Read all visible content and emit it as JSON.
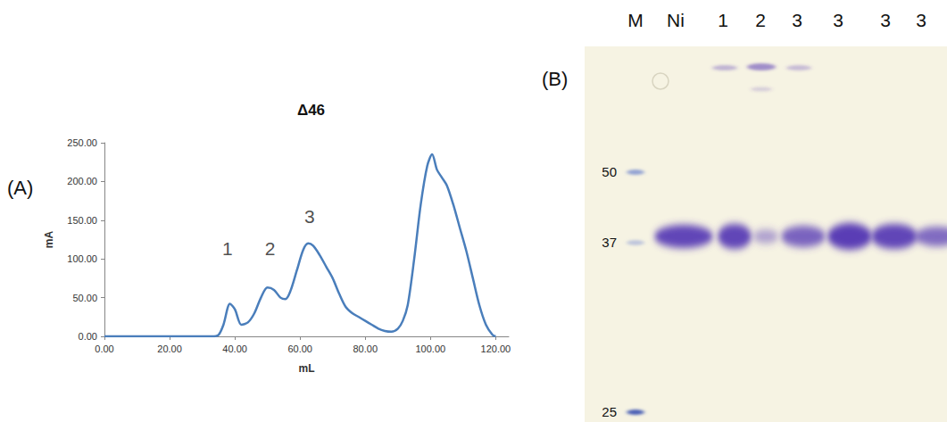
{
  "panel_labels": {
    "A": "(A)",
    "B": "(B)"
  },
  "chart_data": {
    "type": "line",
    "title": "Δ46",
    "xlabel": "mL",
    "ylabel": "mA",
    "color": "#4a7ebb",
    "grid": false,
    "x": [
      0,
      10,
      20,
      30,
      33,
      35,
      36.5,
      38.5,
      40,
      42,
      44,
      46,
      48,
      50,
      52,
      54,
      55.5,
      57,
      59,
      61,
      62.5,
      64,
      66,
      68,
      70,
      72,
      74,
      76,
      78,
      80,
      82,
      84,
      86,
      88,
      90,
      91.5,
      93,
      95,
      97,
      99,
      100.5,
      102,
      103.5,
      105,
      107,
      109,
      111,
      113,
      115,
      117,
      119,
      120
    ],
    "values": [
      0,
      0,
      0,
      0,
      0,
      2,
      15,
      42,
      35,
      15,
      18,
      30,
      50,
      63,
      60,
      50,
      48,
      58,
      85,
      112,
      120,
      117,
      105,
      90,
      75,
      55,
      38,
      30,
      25,
      20,
      15,
      10,
      7,
      6,
      10,
      20,
      40,
      100,
      170,
      220,
      235,
      215,
      205,
      195,
      170,
      140,
      110,
      75,
      40,
      15,
      2,
      0
    ],
    "xlim": [
      0,
      124
    ],
    "xticks": [
      {
        "value": 0,
        "label": "0.00"
      },
      {
        "value": 20,
        "label": "20.00"
      },
      {
        "value": 40,
        "label": "40.00"
      },
      {
        "value": 60,
        "label": "60.00"
      },
      {
        "value": 80,
        "label": "80.00"
      },
      {
        "value": 100,
        "label": "100.00"
      },
      {
        "value": 120,
        "label": "120.00"
      }
    ],
    "ylim": [
      0,
      250
    ],
    "yticks": [
      {
        "value": 0,
        "label": "0.00"
      },
      {
        "value": 50,
        "label": "50.00"
      },
      {
        "value": 100,
        "label": "100.00"
      },
      {
        "value": 150,
        "label": "150.00"
      },
      {
        "value": 200,
        "label": "200.00"
      },
      {
        "value": 250,
        "label": "250.00"
      }
    ],
    "annotations": [
      {
        "text": "1",
        "x": 37.7,
        "y": 114
      },
      {
        "text": "2",
        "x": 50.8,
        "y": 114
      },
      {
        "text": "3",
        "x": 62.9,
        "y": 155
      }
    ]
  },
  "gel": {
    "lanes": [
      "M",
      "Ni",
      "1",
      "2",
      "3",
      "3",
      "3",
      "3"
    ],
    "marker_kda": [
      50,
      37,
      25
    ]
  }
}
